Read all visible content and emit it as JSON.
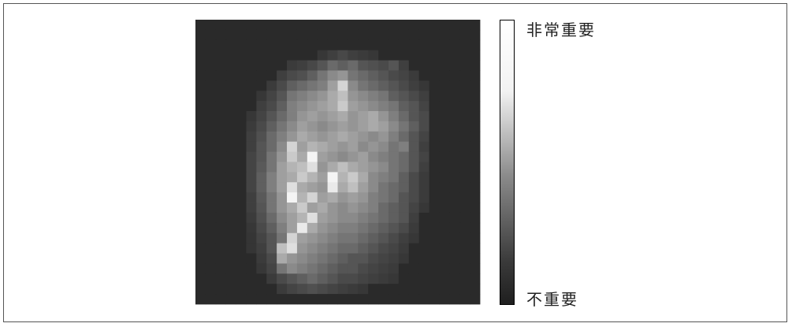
{
  "chart_data": {
    "type": "heatmap",
    "rows": 28,
    "cols": 28,
    "colorbar": {
      "high_label": "非常重要",
      "low_label": "不重要"
    },
    "values": [
      [
        0,
        0,
        0,
        0,
        0,
        0,
        0,
        0,
        0,
        0,
        0,
        0,
        0,
        0,
        0,
        0,
        0,
        0,
        0,
        0,
        0,
        0,
        0,
        0,
        0,
        0,
        0,
        0
      ],
      [
        0,
        0,
        0,
        0,
        0,
        0,
        0,
        0,
        0,
        0,
        0,
        0,
        0,
        0,
        0,
        0,
        0,
        0,
        0,
        0,
        0,
        0,
        0,
        0,
        0,
        0,
        0,
        0
      ],
      [
        0,
        0,
        0,
        0,
        0,
        0,
        0,
        0,
        0,
        0,
        0,
        0,
        0,
        0,
        0,
        0,
        0,
        0,
        0,
        0,
        0,
        0,
        0,
        0,
        0,
        0,
        0,
        0
      ],
      [
        0,
        0,
        0,
        0,
        0,
        0,
        0,
        0,
        0,
        0,
        0,
        0,
        0.06,
        0.1,
        0.14,
        0.1,
        0.08,
        0.06,
        0,
        0,
        0,
        0,
        0,
        0,
        0,
        0,
        0,
        0
      ],
      [
        0,
        0,
        0,
        0,
        0,
        0,
        0,
        0,
        0,
        0.08,
        0.1,
        0.14,
        0.2,
        0.3,
        0.25,
        0.3,
        0.2,
        0.18,
        0.15,
        0.2,
        0.1,
        0,
        0,
        0,
        0,
        0,
        0,
        0
      ],
      [
        0,
        0,
        0,
        0,
        0,
        0,
        0,
        0,
        0.1,
        0.15,
        0.18,
        0.25,
        0.35,
        0.45,
        0.5,
        0.35,
        0.3,
        0.25,
        0.2,
        0.15,
        0.12,
        0.08,
        0,
        0,
        0,
        0,
        0,
        0
      ],
      [
        0,
        0,
        0,
        0,
        0,
        0,
        0,
        0.08,
        0.15,
        0.25,
        0.3,
        0.35,
        0.4,
        0.55,
        0.8,
        0.45,
        0.35,
        0.3,
        0.25,
        0.2,
        0.15,
        0.1,
        0.06,
        0,
        0,
        0,
        0,
        0
      ],
      [
        0,
        0,
        0,
        0,
        0,
        0,
        0.06,
        0.12,
        0.2,
        0.35,
        0.4,
        0.45,
        0.5,
        0.6,
        0.7,
        0.5,
        0.45,
        0.4,
        0.35,
        0.25,
        0.2,
        0.15,
        0.1,
        0,
        0,
        0,
        0,
        0
      ],
      [
        0,
        0,
        0,
        0,
        0,
        0,
        0.1,
        0.15,
        0.25,
        0.4,
        0.45,
        0.5,
        0.55,
        0.6,
        0.75,
        0.55,
        0.5,
        0.45,
        0.4,
        0.35,
        0.25,
        0.2,
        0.12,
        0,
        0,
        0,
        0,
        0
      ],
      [
        0,
        0,
        0,
        0,
        0,
        0.06,
        0.12,
        0.2,
        0.3,
        0.4,
        0.5,
        0.55,
        0.5,
        0.55,
        0.6,
        0.5,
        0.55,
        0.6,
        0.5,
        0.4,
        0.3,
        0.2,
        0.15,
        0,
        0,
        0,
        0,
        0
      ],
      [
        0,
        0,
        0,
        0,
        0,
        0.08,
        0.15,
        0.25,
        0.35,
        0.45,
        0.55,
        0.5,
        0.45,
        0.5,
        0.55,
        0.5,
        0.55,
        0.6,
        0.55,
        0.45,
        0.35,
        0.25,
        0.15,
        0,
        0,
        0,
        0,
        0
      ],
      [
        0,
        0,
        0,
        0,
        0,
        0.1,
        0.18,
        0.3,
        0.4,
        0.5,
        0.6,
        0.55,
        0.5,
        0.55,
        0.6,
        0.55,
        0.5,
        0.45,
        0.5,
        0.4,
        0.3,
        0.2,
        0.12,
        0,
        0,
        0,
        0,
        0
      ],
      [
        0,
        0,
        0,
        0,
        0,
        0.1,
        0.2,
        0.3,
        0.45,
        0.8,
        0.55,
        0.65,
        0.6,
        0.55,
        0.5,
        0.55,
        0.45,
        0.5,
        0.45,
        0.35,
        0.4,
        0.2,
        0.1,
        0,
        0,
        0,
        0,
        0
      ],
      [
        0,
        0,
        0,
        0,
        0,
        0.12,
        0.2,
        0.35,
        0.5,
        0.75,
        0.6,
        0.95,
        0.55,
        0.5,
        0.45,
        0.5,
        0.55,
        0.45,
        0.4,
        0.35,
        0.3,
        0.2,
        0.12,
        0,
        0,
        0,
        0,
        0
      ],
      [
        0,
        0,
        0,
        0,
        0,
        0.12,
        0.22,
        0.35,
        0.55,
        0.65,
        0.7,
        0.85,
        0.5,
        0.6,
        0.7,
        0.6,
        0.55,
        0.5,
        0.45,
        0.35,
        0.3,
        0.2,
        0.1,
        0,
        0,
        0,
        0,
        0
      ],
      [
        0,
        0,
        0,
        0,
        0,
        0.12,
        0.25,
        0.4,
        0.55,
        0.6,
        0.75,
        0.65,
        0.55,
        0.95,
        0.65,
        0.75,
        0.6,
        0.45,
        0.4,
        0.35,
        0.25,
        0.15,
        0.08,
        0,
        0,
        0,
        0,
        0
      ],
      [
        0,
        0,
        0,
        0,
        0,
        0.12,
        0.25,
        0.4,
        0.55,
        0.85,
        0.6,
        0.55,
        0.5,
        0.9,
        0.6,
        0.7,
        0.55,
        0.45,
        0.35,
        0.3,
        0.25,
        0.15,
        0.08,
        0,
        0,
        0,
        0,
        0
      ],
      [
        0,
        0,
        0,
        0,
        0,
        0.1,
        0.22,
        0.35,
        0.5,
        0.95,
        0.65,
        0.8,
        0.55,
        0.6,
        0.5,
        0.55,
        0.5,
        0.4,
        0.35,
        0.3,
        0.2,
        0.15,
        0.08,
        0,
        0,
        0,
        0,
        0
      ],
      [
        0,
        0,
        0,
        0,
        0,
        0.1,
        0.2,
        0.35,
        0.5,
        0.6,
        0.75,
        0.55,
        0.6,
        0.5,
        0.45,
        0.5,
        0.45,
        0.4,
        0.3,
        0.25,
        0.2,
        0.12,
        0.06,
        0,
        0,
        0,
        0,
        0
      ],
      [
        0,
        0,
        0,
        0,
        0,
        0.08,
        0.18,
        0.3,
        0.45,
        0.55,
        0.65,
        0.85,
        0.55,
        0.5,
        0.45,
        0.45,
        0.4,
        0.35,
        0.3,
        0.25,
        0.2,
        0.1,
        0,
        0,
        0,
        0,
        0,
        0
      ],
      [
        0,
        0,
        0,
        0,
        0,
        0.06,
        0.15,
        0.25,
        0.4,
        0.55,
        0.9,
        0.6,
        0.5,
        0.45,
        0.4,
        0.4,
        0.35,
        0.3,
        0.25,
        0.2,
        0.15,
        0.08,
        0,
        0,
        0,
        0,
        0,
        0
      ],
      [
        0,
        0,
        0,
        0,
        0,
        0.05,
        0.12,
        0.2,
        0.35,
        0.8,
        0.55,
        0.5,
        0.45,
        0.4,
        0.35,
        0.35,
        0.3,
        0.25,
        0.2,
        0.15,
        0.1,
        0.06,
        0,
        0,
        0,
        0,
        0,
        0
      ],
      [
        0,
        0,
        0,
        0,
        0,
        0.05,
        0.1,
        0.2,
        0.7,
        0.85,
        0.5,
        0.45,
        0.4,
        0.35,
        0.3,
        0.3,
        0.25,
        0.2,
        0.15,
        0.12,
        0.08,
        0,
        0,
        0,
        0,
        0,
        0,
        0
      ],
      [
        0,
        0,
        0,
        0,
        0,
        0,
        0.08,
        0.15,
        0.6,
        0.5,
        0.45,
        0.4,
        0.35,
        0.3,
        0.25,
        0.2,
        0.2,
        0.15,
        0.12,
        0.1,
        0.06,
        0,
        0,
        0,
        0,
        0,
        0,
        0
      ],
      [
        0,
        0,
        0,
        0,
        0,
        0,
        0.06,
        0.12,
        0.35,
        0.45,
        0.4,
        0.35,
        0.3,
        0.25,
        0.2,
        0.2,
        0.15,
        0.12,
        0.1,
        0.08,
        0,
        0,
        0,
        0,
        0,
        0,
        0,
        0
      ],
      [
        0,
        0,
        0,
        0,
        0,
        0,
        0,
        0.08,
        0.15,
        0.2,
        0.25,
        0.3,
        0.25,
        0.2,
        0.15,
        0.15,
        0.12,
        0.1,
        0.08,
        0.06,
        0,
        0,
        0,
        0,
        0,
        0,
        0,
        0
      ],
      [
        0,
        0,
        0,
        0,
        0,
        0,
        0,
        0,
        0.08,
        0.12,
        0.15,
        0.18,
        0.15,
        0.12,
        0.1,
        0.08,
        0.06,
        0,
        0,
        0,
        0,
        0,
        0,
        0,
        0,
        0,
        0,
        0
      ],
      [
        0,
        0,
        0,
        0,
        0,
        0,
        0,
        0,
        0,
        0,
        0,
        0,
        0,
        0,
        0,
        0,
        0,
        0,
        0,
        0,
        0,
        0,
        0,
        0,
        0,
        0,
        0,
        0
      ]
    ]
  }
}
